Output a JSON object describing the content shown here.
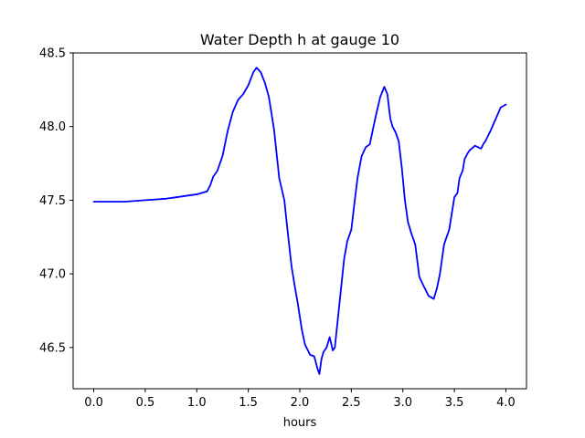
{
  "chart_data": {
    "type": "line",
    "title": "Water Depth h at gauge 10",
    "xlabel": "hours",
    "ylabel": "",
    "xlim": [
      -0.2,
      4.2
    ],
    "ylim": [
      46.22,
      48.5
    ],
    "grid": false,
    "x_ticks": [
      0.0,
      0.5,
      1.0,
      1.5,
      2.0,
      2.5,
      3.0,
      3.5,
      4.0
    ],
    "x_tick_labels": [
      "0.0",
      "0.5",
      "1.0",
      "1.5",
      "2.0",
      "2.5",
      "3.0",
      "3.5",
      "4.0"
    ],
    "y_ticks": [
      46.5,
      47.0,
      47.5,
      48.0,
      48.5
    ],
    "y_tick_labels": [
      "46.5",
      "47.0",
      "47.5",
      "48.0",
      "48.5"
    ],
    "line_color": "#0000ff",
    "series": [
      {
        "x": [
          0.0,
          0.3,
          0.5,
          0.7,
          0.8,
          0.9,
          1.0,
          1.05,
          1.1,
          1.13,
          1.16,
          1.2,
          1.25,
          1.3,
          1.35,
          1.4,
          1.45,
          1.5,
          1.55,
          1.58,
          1.62,
          1.66,
          1.7,
          1.75,
          1.8,
          1.85,
          1.88,
          1.92,
          1.95,
          1.98,
          2.02,
          2.05,
          2.1,
          2.14,
          2.17,
          2.19,
          2.21,
          2.23,
          2.26,
          2.29,
          2.32,
          2.34,
          2.37,
          2.4,
          2.43,
          2.46,
          2.5,
          2.53,
          2.56,
          2.6,
          2.64,
          2.68,
          2.7,
          2.74,
          2.78,
          2.82,
          2.85,
          2.87,
          2.88,
          2.9,
          2.93,
          2.96,
          2.99,
          3.02,
          3.05,
          3.08,
          3.12,
          3.16,
          3.2,
          3.25,
          3.3,
          3.33,
          3.36,
          3.4,
          3.45,
          3.5,
          3.53,
          3.55,
          3.58,
          3.6,
          3.63,
          3.65,
          3.7,
          3.73,
          3.76,
          3.78,
          3.8,
          3.85,
          3.9,
          3.95,
          4.0
        ],
        "y": [
          47.49,
          47.49,
          47.5,
          47.51,
          47.52,
          47.53,
          47.54,
          47.55,
          47.56,
          47.6,
          47.66,
          47.7,
          47.8,
          47.97,
          48.1,
          48.18,
          48.22,
          48.28,
          48.37,
          48.4,
          48.37,
          48.3,
          48.2,
          47.98,
          47.65,
          47.5,
          47.3,
          47.05,
          46.92,
          46.8,
          46.62,
          46.52,
          46.45,
          46.44,
          46.36,
          46.32,
          46.42,
          46.47,
          46.5,
          46.57,
          46.48,
          46.5,
          46.7,
          46.9,
          47.1,
          47.22,
          47.3,
          47.48,
          47.65,
          47.8,
          47.86,
          47.88,
          47.95,
          48.08,
          48.2,
          48.27,
          48.22,
          48.1,
          48.05,
          48.0,
          47.96,
          47.9,
          47.72,
          47.5,
          47.35,
          47.28,
          47.2,
          46.98,
          46.92,
          46.85,
          46.83,
          46.9,
          47.0,
          47.2,
          47.3,
          47.52,
          47.55,
          47.65,
          47.7,
          47.78,
          47.82,
          47.84,
          47.87,
          47.86,
          47.85,
          47.88,
          47.9,
          47.97,
          48.05,
          48.13,
          48.15
        ]
      }
    ]
  }
}
